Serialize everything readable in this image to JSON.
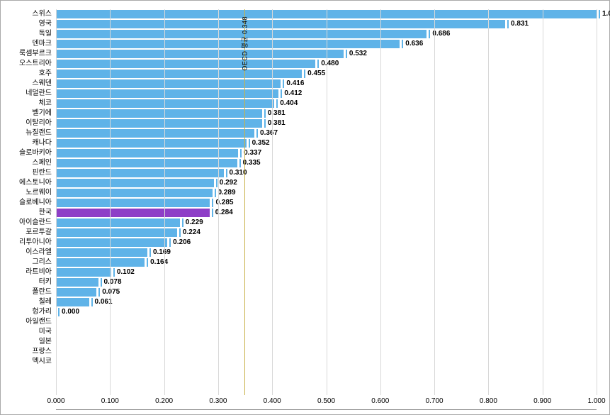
{
  "chart": {
    "type": "bar",
    "orientation": "horizontal",
    "background_color": "#ffffff",
    "grid_color": "#d8d8d8",
    "default_bar_color": "#5fb3e8",
    "highlight_bar_color": "#8e3fc7",
    "marker_color": "#5fb3e8",
    "xlim_min": 0.0,
    "xlim_max": 1.0,
    "xtick_step": 0.1,
    "xtick_decimals": 3,
    "label_fontsize": 10,
    "value_fontsize": 10,
    "reference": {
      "value": 0.348,
      "label": "OECD 평균 0.348",
      "line_color": "#c8b24a"
    },
    "rows": [
      {
        "label": "스위스",
        "value": 1.0,
        "highlight": false
      },
      {
        "label": "영국",
        "value": 0.831,
        "highlight": false
      },
      {
        "label": "독일",
        "value": 0.686,
        "highlight": false
      },
      {
        "label": "덴마크",
        "value": 0.636,
        "highlight": false
      },
      {
        "label": "룩셈부르크",
        "value": 0.532,
        "highlight": false
      },
      {
        "label": "오스트리아",
        "value": 0.48,
        "highlight": false
      },
      {
        "label": "호주",
        "value": 0.455,
        "highlight": false
      },
      {
        "label": "스웨덴",
        "value": 0.416,
        "highlight": false
      },
      {
        "label": "네덜란드",
        "value": 0.412,
        "highlight": false
      },
      {
        "label": "체코",
        "value": 0.404,
        "highlight": false
      },
      {
        "label": "벨기에",
        "value": 0.381,
        "highlight": false
      },
      {
        "label": "이탈리아",
        "value": 0.381,
        "highlight": false
      },
      {
        "label": "뉴질랜드",
        "value": 0.367,
        "highlight": false
      },
      {
        "label": "캐나다",
        "value": 0.352,
        "highlight": false
      },
      {
        "label": "슬로바키아",
        "value": 0.337,
        "highlight": false
      },
      {
        "label": "스페인",
        "value": 0.335,
        "highlight": false
      },
      {
        "label": "핀란드",
        "value": 0.31,
        "highlight": false
      },
      {
        "label": "에스토니아",
        "value": 0.292,
        "highlight": false
      },
      {
        "label": "노르웨이",
        "value": 0.289,
        "highlight": false
      },
      {
        "label": "슬로베니아",
        "value": 0.285,
        "highlight": false
      },
      {
        "label": "한국",
        "value": 0.284,
        "highlight": true
      },
      {
        "label": "아이슬란드",
        "value": 0.229,
        "highlight": false
      },
      {
        "label": "포르투갈",
        "value": 0.224,
        "highlight": false
      },
      {
        "label": "리투아니아",
        "value": 0.206,
        "highlight": false
      },
      {
        "label": "이스라엘",
        "value": 0.169,
        "highlight": false
      },
      {
        "label": "그리스",
        "value": 0.164,
        "highlight": false
      },
      {
        "label": "라트비아",
        "value": 0.102,
        "highlight": false
      },
      {
        "label": "터키",
        "value": 0.078,
        "highlight": false
      },
      {
        "label": "폴란드",
        "value": 0.075,
        "highlight": false
      },
      {
        "label": "칠레",
        "value": 0.061,
        "highlight": false
      },
      {
        "label": "헝가리",
        "value": 0.0,
        "highlight": false
      },
      {
        "label": "아일랜드",
        "value": null,
        "highlight": false
      },
      {
        "label": "미국",
        "value": null,
        "highlight": false
      },
      {
        "label": "일본",
        "value": null,
        "highlight": false
      },
      {
        "label": "프랑스",
        "value": null,
        "highlight": false
      },
      {
        "label": "멕시코",
        "value": null,
        "highlight": false
      }
    ]
  }
}
